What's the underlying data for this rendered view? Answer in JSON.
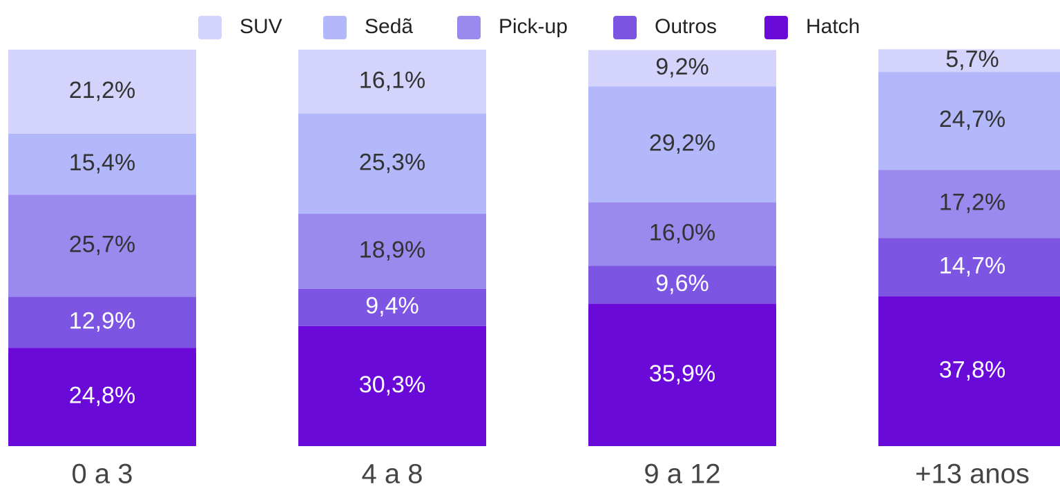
{
  "chart_data": {
    "type": "bar",
    "stacked": true,
    "categories": [
      "0 a 3",
      "4 a 8",
      "9 a 12",
      "+13 anos"
    ],
    "series": [
      {
        "name": "SUV",
        "color": "#d3d3fb",
        "values": [
          21.2,
          16.1,
          9.2,
          5.7
        ],
        "value_labels": [
          "21,2%",
          "16,1%",
          "9,2%",
          "5,7%"
        ]
      },
      {
        "name": "Sedã",
        "color": "#b3b8fb",
        "values": [
          15.4,
          25.3,
          29.2,
          24.7
        ],
        "value_labels": [
          "15,4%",
          "25,3%",
          "29,2%",
          "24,7%"
        ]
      },
      {
        "name": "Pick-up",
        "color": "#9a8aee",
        "values": [
          25.7,
          18.9,
          16.0,
          17.2
        ],
        "value_labels": [
          "25,7%",
          "18,9%",
          "16,0%",
          "17,2%"
        ]
      },
      {
        "name": "Outros",
        "color": "#7d55e3",
        "values": [
          12.9,
          9.4,
          9.6,
          14.7
        ],
        "value_labels": [
          "12,9%",
          "9,4%",
          "9,6%",
          "14,7%"
        ]
      },
      {
        "name": "Hatch",
        "color": "#6a0ad8",
        "values": [
          24.8,
          30.3,
          35.9,
          37.8
        ],
        "value_labels": [
          "24,8%",
          "30,3%",
          "35,9%",
          "37,8%"
        ]
      }
    ],
    "ylim": [
      0,
      100
    ],
    "legend": "top"
  }
}
